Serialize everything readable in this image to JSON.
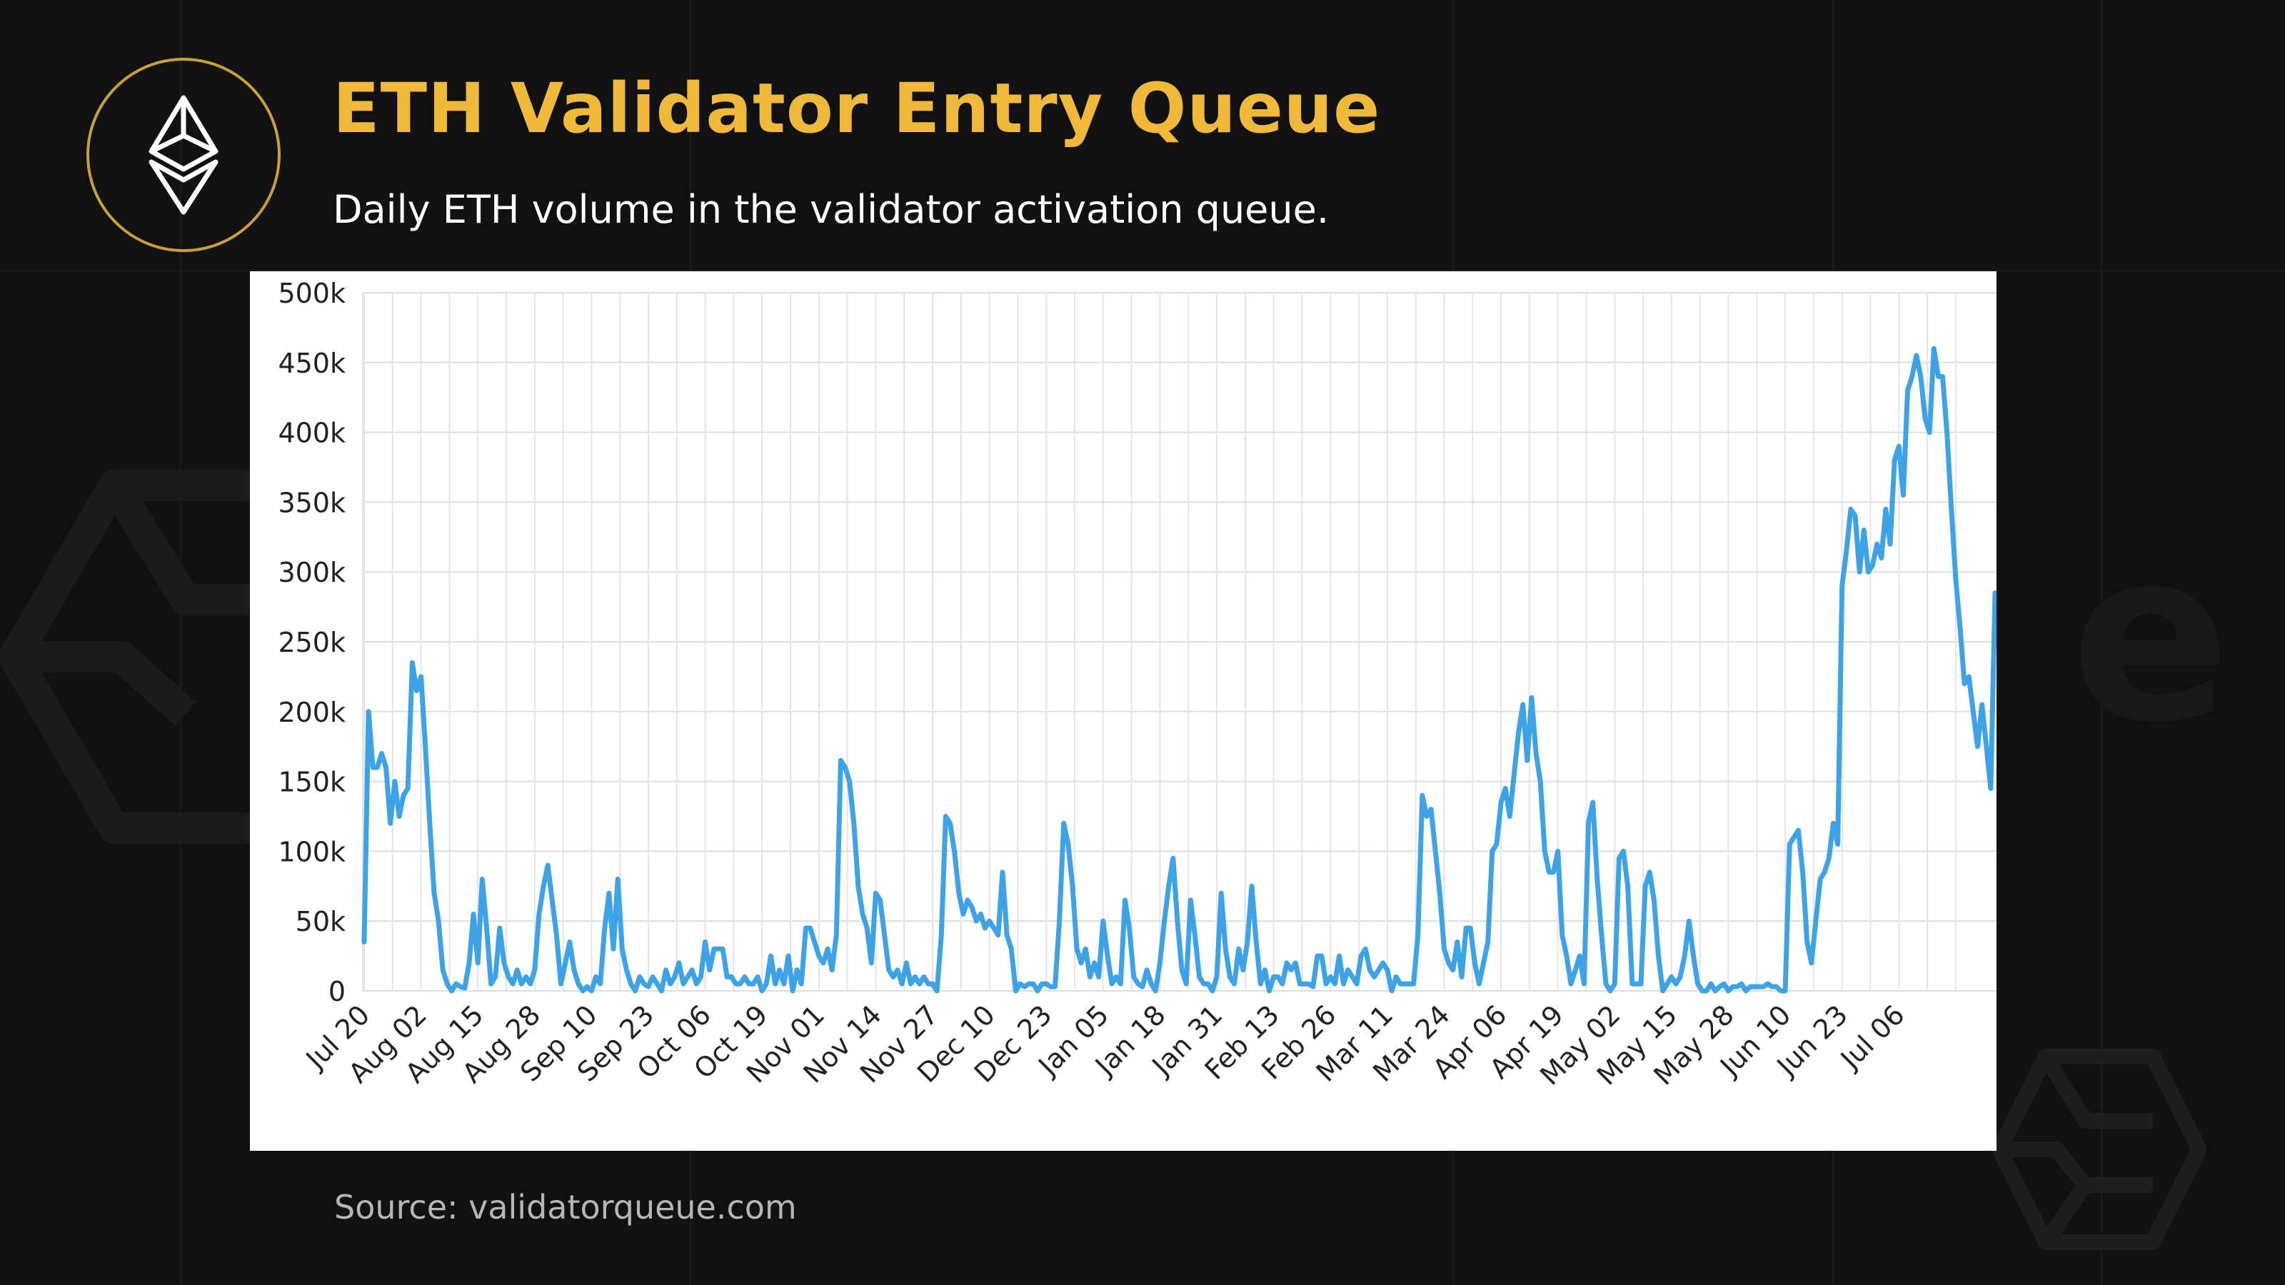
{
  "header": {
    "logo_icon": "ethereum-icon",
    "title": "ETH Validator Entry Queue",
    "subtitle": "Daily ETH volume in the validator activation queue."
  },
  "footer": {
    "source": "Source: validatorqueue.com"
  },
  "colors": {
    "background": "#111111",
    "title": "#f0b93a",
    "logo_ring": "#c9a233",
    "line": "#3ea3e6",
    "panel": "#ffffff"
  },
  "chart_data": {
    "type": "line",
    "title": "",
    "xlabel": "",
    "ylabel": "",
    "ylim": [
      0,
      500000
    ],
    "yticks": [
      0,
      50000,
      100000,
      150000,
      200000,
      250000,
      300000,
      350000,
      400000,
      450000,
      500000
    ],
    "ytick_labels": [
      "0",
      "50k",
      "100k",
      "150k",
      "200k",
      "250k",
      "300k",
      "350k",
      "400k",
      "450k",
      "500k"
    ],
    "xtick_labels": [
      "Jul 20",
      "Aug 02",
      "Aug 15",
      "Aug 28",
      "Sep 10",
      "Sep 23",
      "Oct 06",
      "Oct 19",
      "Nov 01",
      "Nov 14",
      "Nov 27",
      "Dec 10",
      "Dec 23",
      "Jan 05",
      "Jan 18",
      "Jan 31",
      "Feb 13",
      "Feb 26",
      "Mar 11",
      "Mar 24",
      "Apr 06",
      "Apr 19",
      "May 02",
      "May 15",
      "May 28",
      "Jun 10",
      "Jun 23",
      "Jul 06"
    ],
    "grid": true,
    "legend": "none",
    "series": [
      {
        "values": [
          35000,
          200000,
          160000,
          160000,
          170000,
          160000,
          120000,
          150000,
          125000,
          140000,
          145000,
          235000,
          215000,
          225000,
          175000,
          120000,
          70000,
          50000,
          15000,
          5000,
          0,
          5000,
          3000,
          2000,
          20000,
          55000,
          20000,
          80000,
          45000,
          5000,
          10000,
          45000,
          20000,
          10000,
          5000,
          15000,
          5000,
          10000,
          5000,
          15000,
          55000,
          75000,
          90000,
          65000,
          40000,
          5000,
          20000,
          35000,
          15000,
          5000,
          0,
          3000,
          0,
          10000,
          5000,
          45000,
          70000,
          30000,
          80000,
          30000,
          15000,
          5000,
          0,
          10000,
          5000,
          3000,
          10000,
          5000,
          0,
          15000,
          5000,
          10000,
          20000,
          5000,
          10000,
          15000,
          5000,
          10000,
          35000,
          15000,
          30000,
          30000,
          30000,
          10000,
          10000,
          5000,
          5000,
          10000,
          5000,
          5000,
          10000,
          0,
          5000,
          25000,
          5000,
          15000,
          5000,
          25000,
          0,
          15000,
          5000,
          45000,
          45000,
          35000,
          25000,
          20000,
          30000,
          15000,
          40000,
          165000,
          160000,
          150000,
          120000,
          75000,
          55000,
          45000,
          20000,
          70000,
          65000,
          40000,
          15000,
          10000,
          15000,
          5000,
          20000,
          5000,
          10000,
          5000,
          10000,
          5000,
          5000,
          0,
          40000,
          125000,
          120000,
          100000,
          70000,
          55000,
          65000,
          60000,
          50000,
          55000,
          45000,
          50000,
          45000,
          40000,
          85000,
          40000,
          30000,
          0,
          5000,
          3000,
          5000,
          5000,
          0,
          5000,
          5000,
          3000,
          3000,
          50000,
          120000,
          105000,
          75000,
          30000,
          20000,
          30000,
          10000,
          20000,
          10000,
          50000,
          25000,
          5000,
          10000,
          5000,
          65000,
          45000,
          10000,
          5000,
          3000,
          15000,
          5000,
          0,
          20000,
          50000,
          75000,
          95000,
          50000,
          15000,
          5000,
          65000,
          40000,
          10000,
          5000,
          5000,
          0,
          10000,
          70000,
          30000,
          10000,
          5000,
          30000,
          15000,
          35000,
          75000,
          35000,
          5000,
          15000,
          0,
          10000,
          10000,
          5000,
          20000,
          15000,
          20000,
          5000,
          5000,
          5000,
          3000,
          25000,
          25000,
          5000,
          10000,
          5000,
          25000,
          5000,
          15000,
          10000,
          5000,
          25000,
          30000,
          15000,
          10000,
          15000,
          20000,
          15000,
          0,
          10000,
          5000,
          5000,
          5000,
          5000,
          40000,
          140000,
          125000,
          130000,
          100000,
          70000,
          30000,
          20000,
          15000,
          35000,
          10000,
          45000,
          45000,
          20000,
          5000,
          20000,
          35000,
          100000,
          105000,
          135000,
          145000,
          125000,
          155000,
          185000,
          205000,
          165000,
          210000,
          170000,
          150000,
          100000,
          85000,
          85000,
          100000,
          40000,
          25000,
          5000,
          15000,
          25000,
          5000,
          120000,
          135000,
          80000,
          40000,
          5000,
          0,
          5000,
          95000,
          100000,
          75000,
          5000,
          5000,
          5000,
          75000,
          85000,
          65000,
          25000,
          0,
          5000,
          10000,
          5000,
          10000,
          25000,
          50000,
          25000,
          5000,
          0,
          0,
          5000,
          0,
          3000,
          5000,
          0,
          3000,
          3000,
          5000,
          0,
          3000,
          3000,
          3000,
          3000,
          5000,
          3000,
          3000,
          0,
          0,
          105000,
          110000,
          115000,
          85000,
          35000,
          20000,
          50000,
          80000,
          85000,
          95000,
          120000,
          105000,
          290000,
          315000,
          345000,
          340000,
          300000,
          330000,
          300000,
          305000,
          320000,
          310000,
          345000,
          320000,
          380000,
          390000,
          355000,
          430000,
          440000,
          455000,
          440000,
          410000,
          400000,
          460000,
          440000,
          440000,
          400000,
          345000,
          295000,
          260000,
          220000,
          225000,
          200000,
          175000,
          205000,
          175000,
          145000,
          285000
        ]
      }
    ]
  }
}
